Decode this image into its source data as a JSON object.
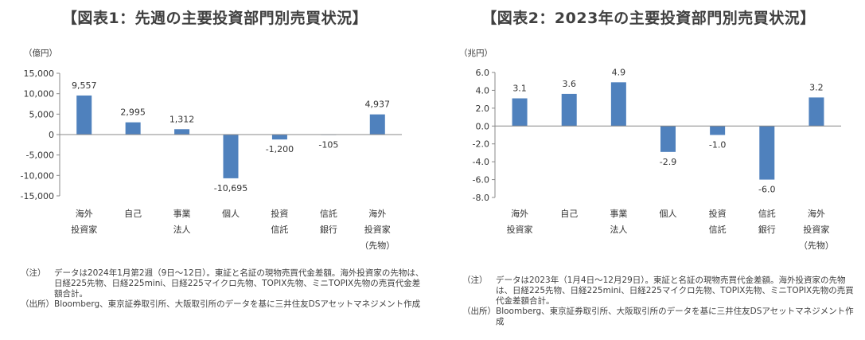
{
  "chart_data": [
    {
      "type": "bar",
      "title": "【図表1：先週の主要投資部門別売買状況】",
      "unit_label": "（億円）",
      "ylim": [
        -15000,
        15000
      ],
      "yticks": [
        15000,
        10000,
        5000,
        0,
        -5000,
        -10000,
        -15000
      ],
      "ytick_labels": [
        "15,000",
        "10,000",
        "5,000",
        "0",
        "-5,000",
        "-10,000",
        "-15,000"
      ],
      "categories": [
        [
          "海外",
          "投資家"
        ],
        [
          "自己"
        ],
        [
          "事業",
          "法人"
        ],
        [
          "個人"
        ],
        [
          "投資",
          "信託"
        ],
        [
          "信託",
          "銀行"
        ],
        [
          "海外",
          "投資家",
          "（先物）"
        ]
      ],
      "values": [
        9557,
        2995,
        1312,
        -10695,
        -1200,
        -105,
        4937
      ],
      "value_labels": [
        "9,557",
        "2,995",
        "1,312",
        "-10,695",
        "-1,200",
        "-105",
        "4,937"
      ],
      "bar_color": "#4f81bd"
    },
    {
      "type": "bar",
      "title": "【図表2：2023年の主要投資部門別売買状況】",
      "unit_label": "（兆円）",
      "ylim": [
        -8.0,
        6.0
      ],
      "yticks": [
        6.0,
        4.0,
        2.0,
        0.0,
        -2.0,
        -4.0,
        -6.0,
        -8.0
      ],
      "ytick_labels": [
        "6.0",
        "4.0",
        "2.0",
        "0.0",
        "-2.0",
        "-4.0",
        "-6.0",
        "-8.0"
      ],
      "categories": [
        [
          "海外",
          "投資家"
        ],
        [
          "自己"
        ],
        [
          "事業",
          "法人"
        ],
        [
          "個人"
        ],
        [
          "投資",
          "信託"
        ],
        [
          "信託",
          "銀行"
        ],
        [
          "海外",
          "投資家",
          "（先物）"
        ]
      ],
      "values": [
        3.1,
        3.6,
        4.9,
        -2.9,
        -1.0,
        -6.0,
        3.2
      ],
      "value_labels": [
        "3.1",
        "3.6",
        "4.9",
        "-2.9",
        "-1.0",
        "-6.0",
        "3.2"
      ],
      "bar_color": "#4f81bd"
    }
  ],
  "notes1": {
    "note_tag": "（注）",
    "note_text": "データは2024年1月第2週（9日～12日）。東証と名証の現物売買代金差額。海外投資家の先物は、日経225先物、日経225mini、日経225マイクロ先物、TOPIX先物、ミニTOPIX先物の売買代金差額合計。",
    "source_tag": "（出所）",
    "source_text": "Bloomberg、東京証券取引所、大阪取引所のデータを基に三井住友DSアセットマネジメント作成"
  },
  "notes2": {
    "note_tag": "（注）",
    "note_text": "データは2023年（1月4日～12月29日）。東証と名証の現物売買代金差額。海外投資家の先物は、日経225先物、日経225mini、日経225マイクロ先物、TOPIX先物、ミニTOPIX先物の売買代金差額合計。",
    "source_tag": "（出所）",
    "source_text": "Bloomberg、東京証券取引所、大阪取引所のデータを基に三井住友DSアセットマネジメント作成"
  }
}
